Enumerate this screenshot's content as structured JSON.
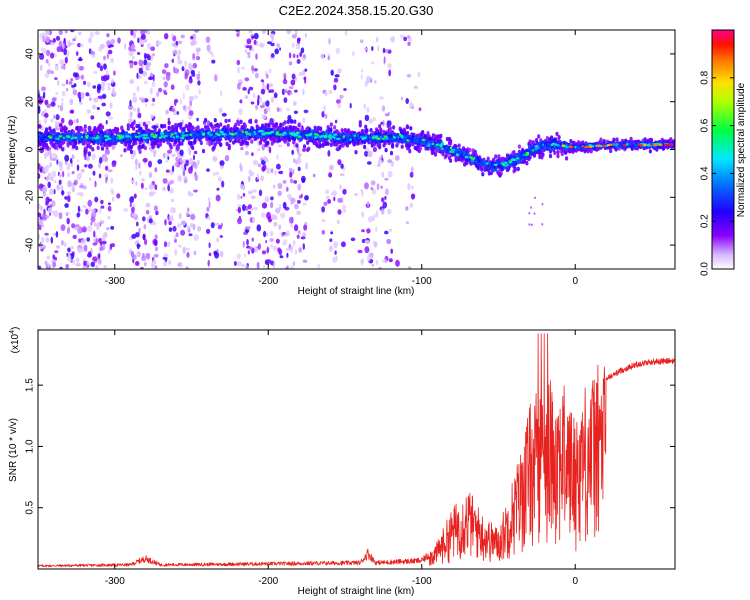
{
  "title": "C2E2.2024.358.15.20.G30",
  "chart_data": [
    {
      "type": "heatmap",
      "name": "spectrogram",
      "xlabel": "Height of straight line (km)",
      "ylabel": "Frequency (Hz)",
      "xlim": [
        -350,
        65
      ],
      "ylim": [
        -50,
        50
      ],
      "xticks": [
        -300,
        -200,
        -100,
        0
      ],
      "yticks": [
        -40,
        -20,
        0,
        20,
        40
      ],
      "xtick_labels": [
        "-300",
        "-200",
        "-100",
        "0"
      ],
      "ytick_labels": [
        "-40",
        "-20",
        "0",
        "20",
        "40"
      ],
      "colorbar": {
        "label": "Normalized spectral amplitude",
        "range": [
          0,
          1
        ],
        "ticks": [
          0.0,
          0.2,
          0.4,
          0.6,
          0.8
        ],
        "tick_labels": [
          "0.0",
          "0.2",
          "0.4",
          "0.6",
          "0.8"
        ],
        "colors": [
          "#ffffff",
          "#c8a0ff",
          "#7a00ff",
          "#0000ff",
          "#00ffff",
          "#00ff00",
          "#ffff00",
          "#ff8000",
          "#ff0000",
          "#ff00a0"
        ]
      },
      "ridge": {
        "x": [
          -350,
          -300,
          -250,
          -200,
          -150,
          -110,
          -90,
          -70,
          -55,
          -45,
          -35,
          -25,
          -15,
          0,
          30,
          65
        ],
        "y": [
          5,
          5,
          6,
          7,
          5,
          5,
          2,
          -3,
          -7,
          -6,
          -3,
          1,
          2,
          1,
          2,
          2
        ]
      }
    },
    {
      "type": "line",
      "name": "snr",
      "xlabel": "Height of straight line (km)",
      "ylabel": "SNR (10 * v/v)",
      "scale_label_base": "(x10",
      "scale_label_exp": "4",
      "scale_label_end": ")",
      "color": "#e8221f",
      "xlim": [
        -350,
        65
      ],
      "ylim": [
        0,
        1.95
      ],
      "xticks": [
        -300,
        -200,
        -100,
        0
      ],
      "yticks": [
        0.5,
        1.0,
        1.5
      ],
      "xtick_labels": [
        "-300",
        "-200",
        "-100",
        "0"
      ],
      "ytick_labels": [
        "0.5",
        "1.0",
        "1.5"
      ],
      "envelope": {
        "x": [
          -350,
          -290,
          -280,
          -270,
          -200,
          -140,
          -135,
          -130,
          -100,
          -90,
          -80,
          -70,
          -60,
          -50,
          -40,
          -35,
          -30,
          -25,
          -20,
          -15,
          -10,
          -5,
          0,
          5,
          10,
          15,
          20,
          30,
          40,
          50,
          65
        ],
        "y": [
          0.03,
          0.04,
          0.1,
          0.04,
          0.05,
          0.06,
          0.15,
          0.06,
          0.08,
          0.2,
          0.45,
          0.6,
          0.4,
          0.3,
          0.7,
          0.9,
          1.2,
          1.3,
          1.5,
          1.35,
          1.4,
          1.3,
          1.1,
          1.35,
          1.4,
          1.5,
          1.55,
          1.62,
          1.67,
          1.69,
          1.7
        ]
      }
    }
  ]
}
